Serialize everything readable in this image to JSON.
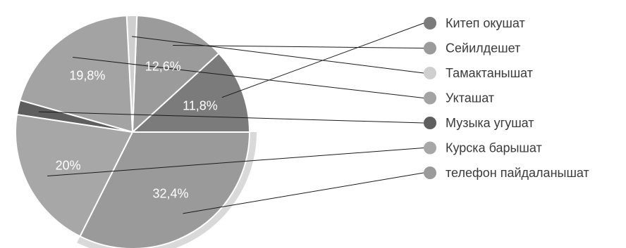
{
  "chart_data": {
    "type": "pie",
    "title": "",
    "slices": [
      {
        "label": "Китеп окушат",
        "value": 11.8,
        "value_label": "11,8%",
        "color": "#7b7b7b"
      },
      {
        "label": "Сейилдешет",
        "value": 12.6,
        "value_label": "12,6%",
        "color": "#9b9b9b"
      },
      {
        "label": "Тамактанышат",
        "value": 1.4,
        "value_label": "",
        "color": "#cfcfcf"
      },
      {
        "label": "Укташат",
        "value": 19.8,
        "value_label": "19,8%",
        "color": "#a3a3a3"
      },
      {
        "label": "Музыка угушат",
        "value": 2.0,
        "value_label": "",
        "color": "#5e5e5e"
      },
      {
        "label": "Курска барышат",
        "value": 20.0,
        "value_label": "20%",
        "color": "#a7a7a7"
      },
      {
        "label": "телефон пайдаланышат",
        "value": 32.4,
        "value_label": "32,4%",
        "color": "#9a9a9a"
      }
    ],
    "legend_position": "right"
  }
}
